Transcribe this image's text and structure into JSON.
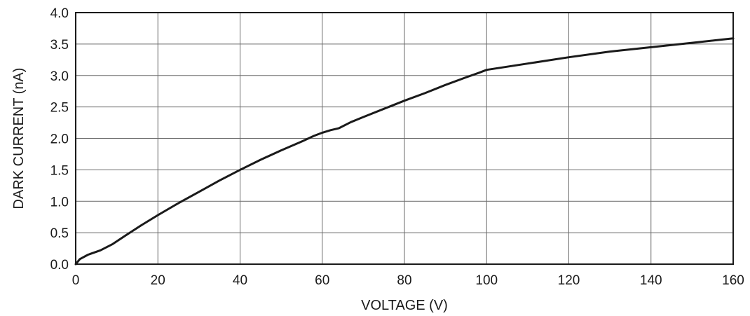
{
  "chart_data": {
    "type": "line",
    "xlabel": "VOLTAGE (V)",
    "ylabel": "DARK CURRENT (nA)",
    "xlim": [
      0,
      160
    ],
    "ylim": [
      0,
      4.0
    ],
    "xticks": [
      "0",
      "20",
      "40",
      "60",
      "80",
      "100",
      "120",
      "140",
      "160"
    ],
    "yticks": [
      "0.0",
      "0.5",
      "1.0",
      "1.5",
      "2.0",
      "2.5",
      "3.0",
      "3.5",
      "4.0"
    ],
    "grid": true,
    "series": [
      {
        "x": [
          0,
          1,
          3,
          6,
          9,
          12,
          16,
          20,
          25,
          30,
          35,
          40,
          45,
          50,
          55,
          58,
          60,
          62,
          64,
          67,
          70,
          75,
          80,
          85,
          90,
          95,
          98,
          100,
          105,
          110,
          120,
          130,
          140,
          150,
          160
        ],
        "y": [
          0.0,
          0.08,
          0.15,
          0.22,
          0.32,
          0.45,
          0.62,
          0.78,
          0.97,
          1.15,
          1.33,
          1.5,
          1.66,
          1.81,
          1.95,
          2.04,
          2.09,
          2.13,
          2.16,
          2.26,
          2.34,
          2.47,
          2.6,
          2.72,
          2.85,
          2.97,
          3.04,
          3.09,
          3.14,
          3.19,
          3.29,
          3.38,
          3.45,
          3.52,
          3.59
        ]
      }
    ]
  }
}
